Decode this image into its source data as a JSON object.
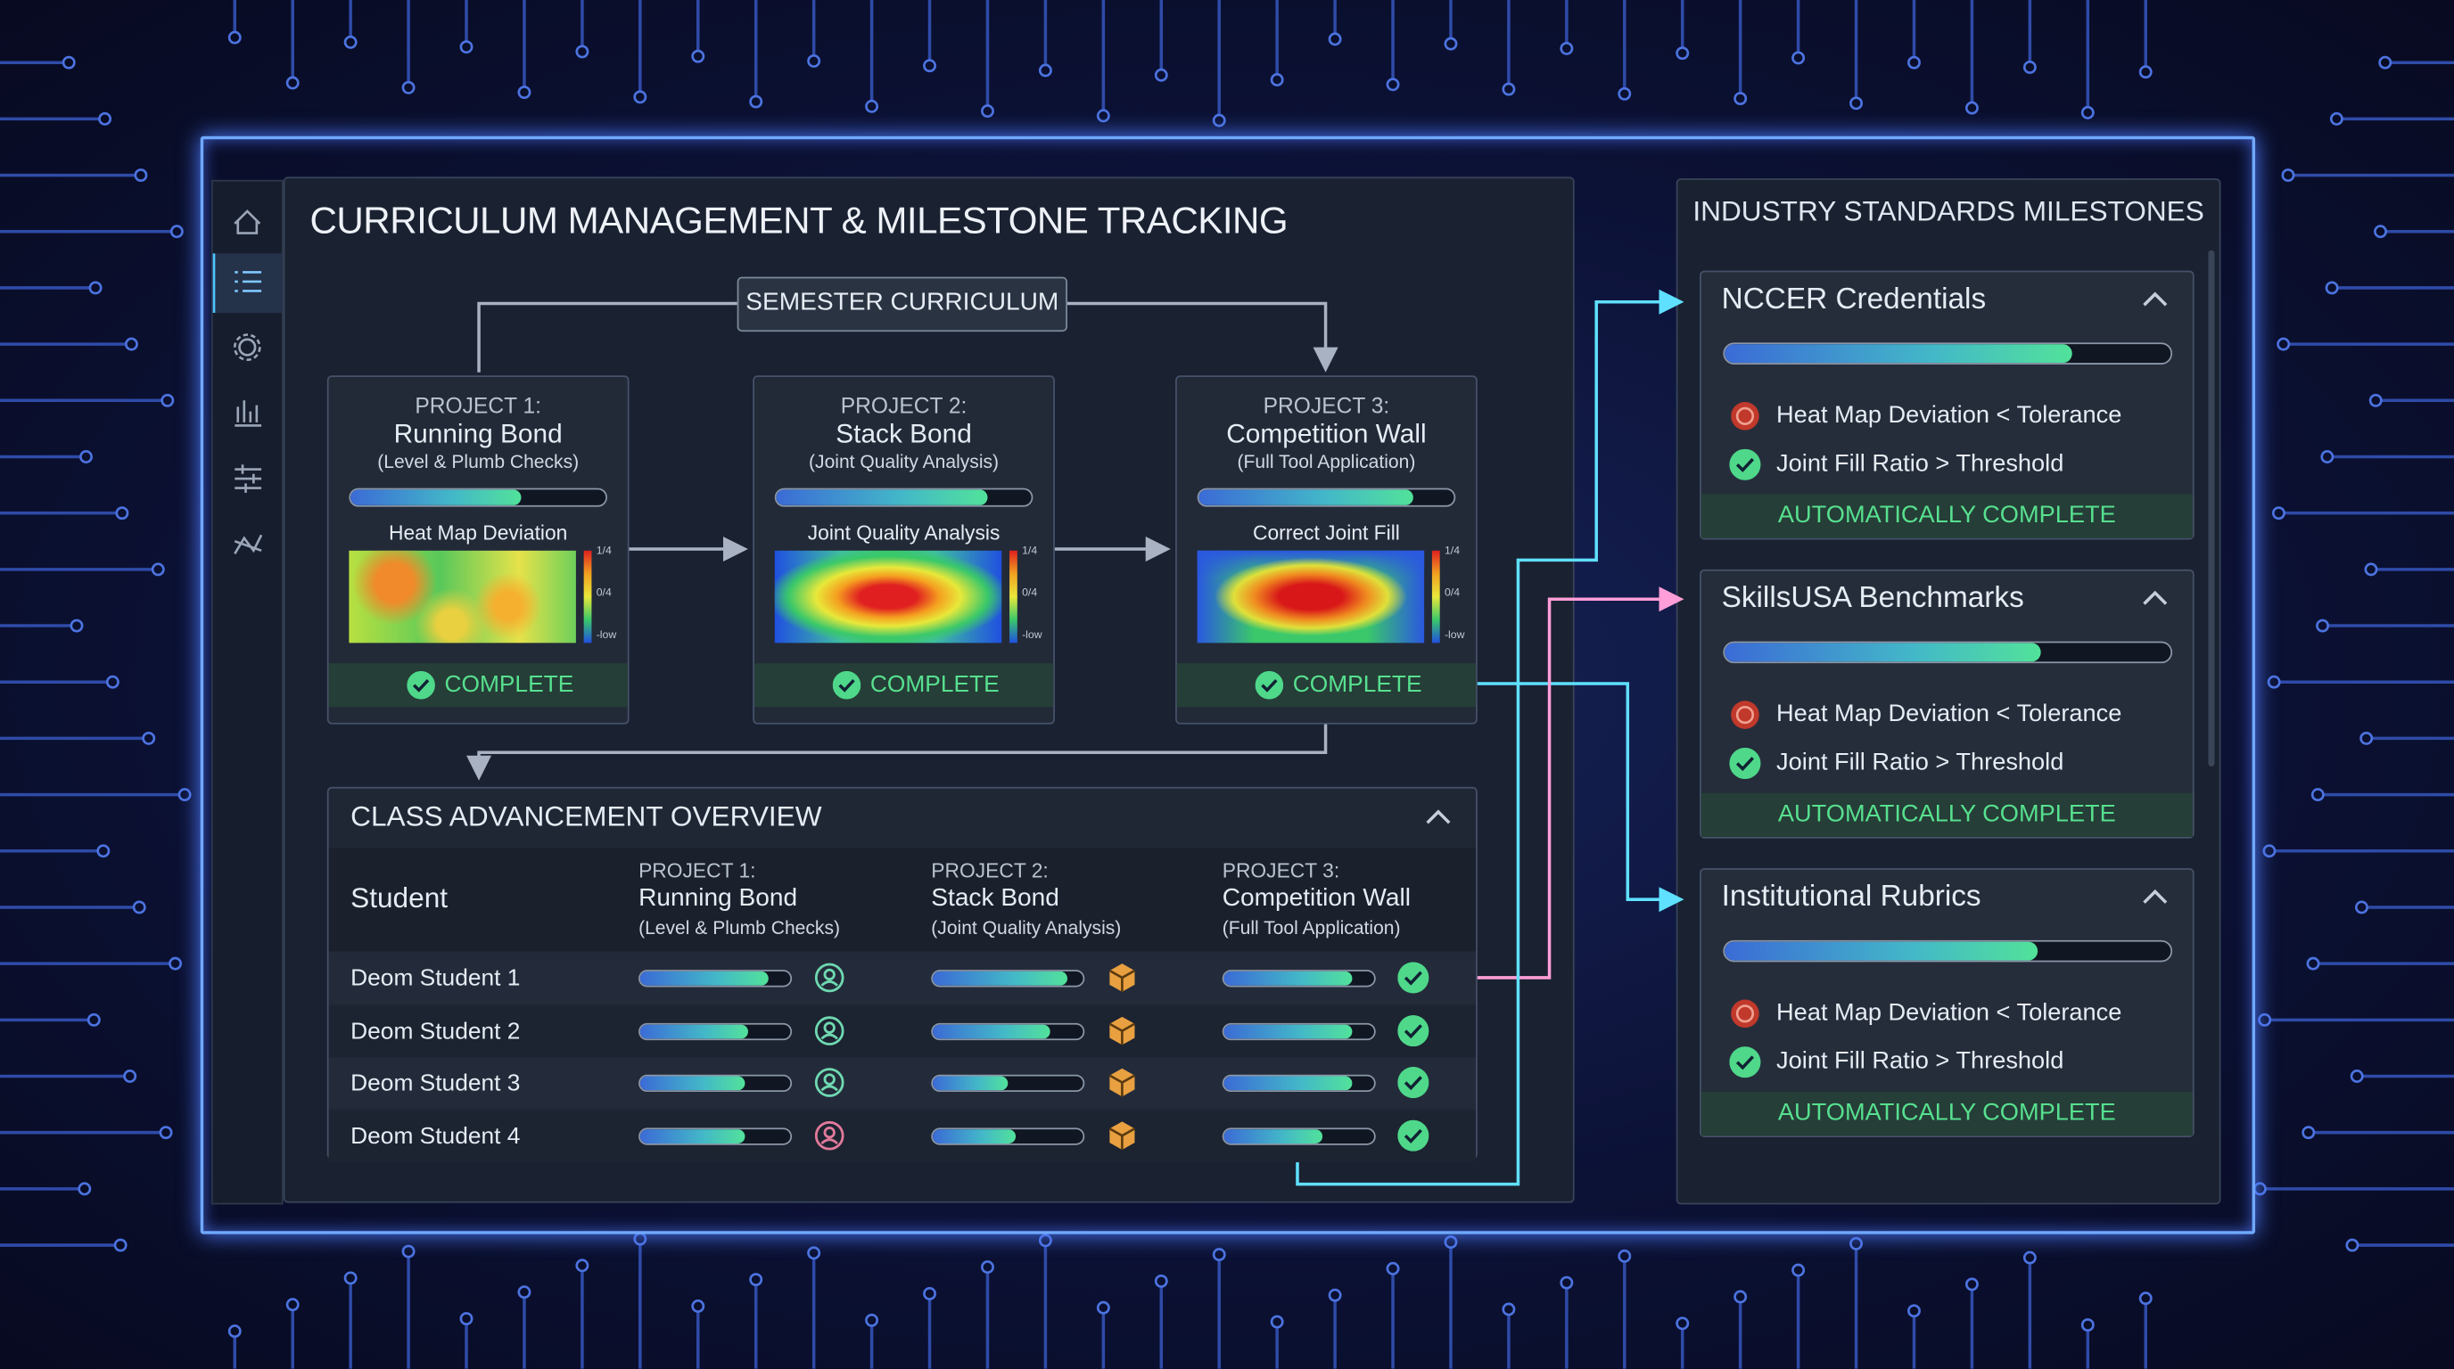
{
  "header": {
    "title": "CURRICULUM MANAGEMENT & MILESTONE TRACKING"
  },
  "curriculum": {
    "label": "SEMESTER CURRICULUM",
    "projects": [
      {
        "number": "PROJECT 1:",
        "name": "Running Bond",
        "detail": "(Level & Plumb Checks)",
        "progress": 67,
        "analysis": "Heat Map Deviation",
        "scale": [
          "1/4",
          "0/4",
          "-low"
        ],
        "status": "COMPLETE"
      },
      {
        "number": "PROJECT 2:",
        "name": "Stack Bond",
        "detail": "(Joint Quality Analysis)",
        "progress": 83,
        "analysis": "Joint Quality Analysis",
        "scale": [
          "1/4",
          "0/4",
          "-low"
        ],
        "status": "COMPLETE"
      },
      {
        "number": "PROJECT 3:",
        "name": "Competition Wall",
        "detail": "(Full Tool Application)",
        "progress": 84,
        "analysis": "Correct Joint Fill",
        "scale": [
          "1/4",
          "0/4",
          "-low"
        ],
        "status": "COMPLETE"
      }
    ]
  },
  "class_overview": {
    "title": "CLASS ADVANCEMENT OVERVIEW",
    "student_header": "Student",
    "columns": [
      {
        "number": "PROJECT 1:",
        "name": "Running Bond",
        "detail": "(Level & Plumb Checks)"
      },
      {
        "number": "PROJECT 2:",
        "name": "Stack Bond",
        "detail": "(Joint Quality Analysis)"
      },
      {
        "number": "PROJECT 3:",
        "name": "Competition Wall",
        "detail": "(Full Tool Application)"
      }
    ],
    "rows": [
      {
        "student": "Deom Student 1",
        "progress": [
          85,
          90,
          85
        ]
      },
      {
        "student": "Deom Student 2",
        "progress": [
          72,
          78,
          85
        ]
      },
      {
        "student": "Deom Student 3",
        "progress": [
          70,
          50,
          85
        ]
      },
      {
        "student": "Deom Student 4",
        "progress": [
          70,
          55,
          66
        ]
      }
    ]
  },
  "milestones": {
    "title": "INDUSTRY STANDARDS MILESTONES",
    "groups": [
      {
        "name": "NCCER Credentials",
        "progress": 78,
        "criteria": [
          "Heat Map Deviation < Tolerance",
          "Joint Fill Ratio > Threshold"
        ],
        "status": "AUTOMATICALLY COMPLETE"
      },
      {
        "name": "SkillsUSA Benchmarks",
        "progress": 71,
        "criteria": [
          "Heat Map Deviation < Tolerance",
          "Joint Fill Ratio > Threshold"
        ],
        "status": "AUTOMATICALLY COMPLETE"
      },
      {
        "name": "Institutional Rubrics",
        "progress": 70,
        "criteria": [
          "Heat Map Deviation < Tolerance",
          "Joint Fill Ratio > Threshold"
        ],
        "status": "AUTOMATICALLY COMPLETE"
      }
    ]
  }
}
